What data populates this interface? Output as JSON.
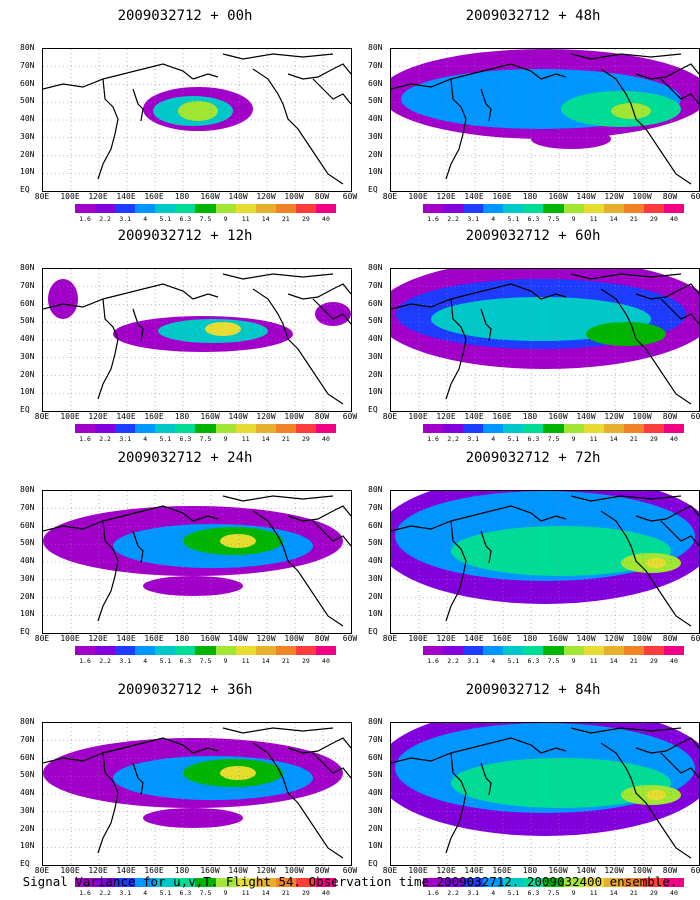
{
  "panels": [
    {
      "title": "2009032712 + 00h",
      "level": 0
    },
    {
      "title": "2009032712 + 48h",
      "level": 3
    },
    {
      "title": "2009032712 + 12h",
      "level": 1
    },
    {
      "title": "2009032712 + 60h",
      "level": 4
    },
    {
      "title": "2009032712 + 24h",
      "level": 2
    },
    {
      "title": "2009032712 + 72h",
      "level": 5
    },
    {
      "title": "2009032712 + 36h",
      "level": 2
    },
    {
      "title": "2009032712 + 84h",
      "level": 5
    }
  ],
  "lat_labels": [
    "80N",
    "70N",
    "60N",
    "50N",
    "40N",
    "30N",
    "20N",
    "10N",
    "EQ"
  ],
  "lon_labels": [
    "80E",
    "100E",
    "120E",
    "140E",
    "160E",
    "180",
    "160W",
    "140W",
    "120W",
    "100W",
    "80W",
    "60W"
  ],
  "colorbar": {
    "labels": [
      "1.6",
      "2.2",
      "3.1",
      "4",
      "5.1",
      "6.3",
      "7.5",
      "9",
      "11",
      "14",
      "21",
      "29",
      "40"
    ],
    "colors": [
      "#a000c8",
      "#8200dc",
      "#1e3cff",
      "#0096ff",
      "#00c8c8",
      "#00dc96",
      "#00b400",
      "#a0e632",
      "#e6dc32",
      "#e6af2d",
      "#f08228",
      "#fa3c3c",
      "#f00082"
    ]
  },
  "footer": "Signal Variance for u,v,T. Flight 54. Observation time 2009032712. 2009032400 ensemble."
}
